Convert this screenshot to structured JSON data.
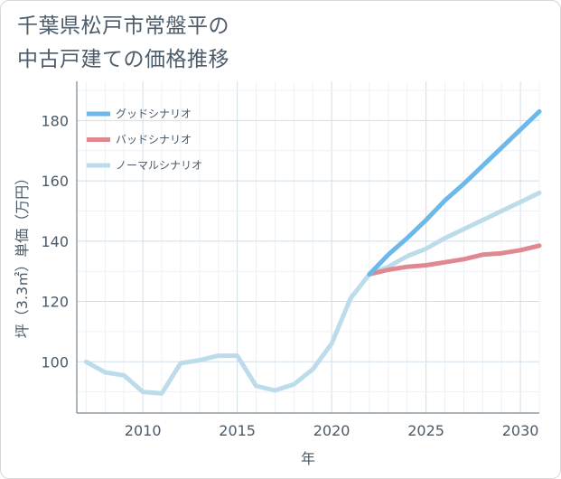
{
  "chart_data": {
    "type": "line",
    "title": "千葉県松戸市常盤平の中古戸建ての価格推移",
    "title_lines": [
      "千葉県松戸市常盤平の",
      "中古戸建ての価格推移"
    ],
    "xlabel": "年",
    "ylabel": "坪（3.3㎡）単価（万円）",
    "xlim": [
      2006.5,
      2031
    ],
    "ylim": [
      83,
      193
    ],
    "x_ticks": [
      2010,
      2015,
      2020,
      2025,
      2030
    ],
    "y_ticks": [
      100,
      120,
      140,
      160,
      180
    ],
    "grid": true,
    "legend_position": "top-left",
    "series": [
      {
        "name": "グッドシナリオ",
        "color": "#6cb8ea",
        "x": [
          2022,
          2023,
          2024,
          2025,
          2026,
          2027,
          2028,
          2029,
          2030,
          2031
        ],
        "y": [
          129,
          135.5,
          141,
          147,
          153.5,
          159,
          165,
          171,
          177,
          183
        ]
      },
      {
        "name": "バッドシナリオ",
        "color": "#e08890",
        "x": [
          2022,
          2023,
          2024,
          2025,
          2026,
          2027,
          2028,
          2029,
          2030,
          2031
        ],
        "y": [
          129,
          130.5,
          131.5,
          132,
          133,
          134,
          135.5,
          136,
          137,
          138.5
        ]
      },
      {
        "name": "ノーマルシナリオ",
        "color": "#bcdcec",
        "x": [
          2007,
          2008,
          2009,
          2010,
          2011,
          2012,
          2013,
          2014,
          2015,
          2016,
          2017,
          2018,
          2019,
          2020,
          2021,
          2022,
          2023,
          2024,
          2025,
          2026,
          2027,
          2028,
          2029,
          2030,
          2031
        ],
        "y": [
          100,
          96.5,
          95.5,
          90,
          89.5,
          99.5,
          100.5,
          102,
          102,
          92,
          90.5,
          92.5,
          97.5,
          106,
          121,
          129,
          131.5,
          135,
          137.5,
          141,
          144,
          147,
          150,
          153,
          156
        ]
      }
    ]
  }
}
